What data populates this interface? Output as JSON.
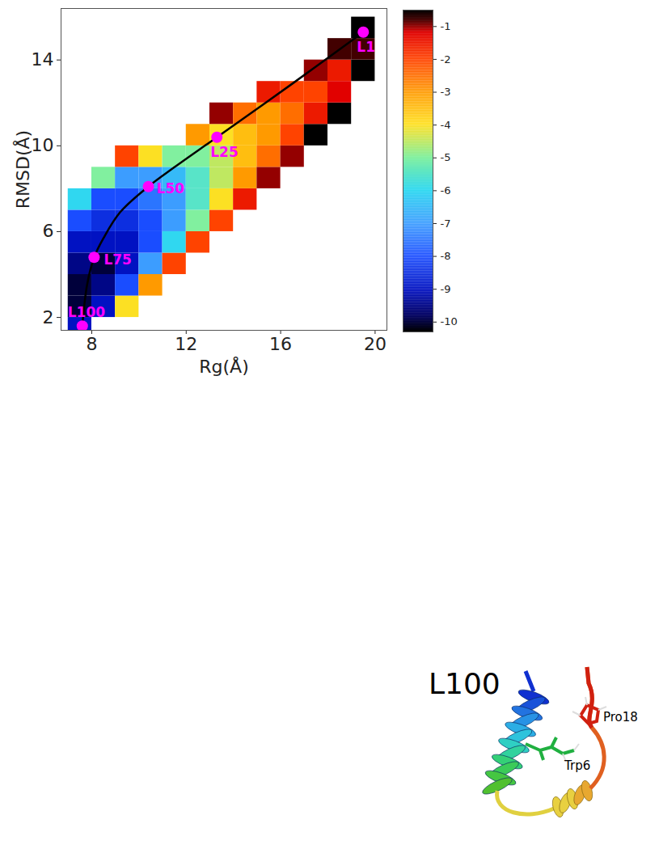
{
  "chart_data": {
    "type": "heatmap",
    "x_label": "Rg(Å)",
    "y_label": "RMSD(Å)",
    "xlim": [
      6.7,
      20.5
    ],
    "ylim": [
      1.4,
      16.4
    ],
    "xticks": [
      8,
      12,
      16,
      20
    ],
    "yticks": [
      2,
      6,
      10,
      14
    ],
    "heatmap": {
      "x_bins": [
        7,
        8,
        9,
        10,
        11,
        12,
        13,
        14,
        15,
        16,
        17,
        18,
        19,
        20
      ],
      "y_bins": [
        1,
        2,
        3,
        4,
        5,
        6,
        7,
        8,
        9,
        10,
        11,
        12,
        13,
        14,
        15,
        16
      ],
      "z": [
        [
          -9,
          null,
          null,
          null,
          null,
          null,
          null,
          null,
          null,
          null,
          null,
          null,
          null
        ],
        [
          -10,
          -9,
          -4,
          null,
          null,
          null,
          null,
          null,
          null,
          null,
          null,
          null,
          null
        ],
        [
          -10,
          -9.5,
          -8,
          -3,
          null,
          null,
          null,
          null,
          null,
          null,
          null,
          null,
          null
        ],
        [
          -9.5,
          -10,
          -9,
          -7,
          -2,
          null,
          null,
          null,
          null,
          null,
          null,
          null,
          null
        ],
        [
          -9,
          -9,
          -9,
          -8,
          -6,
          -2,
          null,
          null,
          null,
          null,
          null,
          null,
          null
        ],
        [
          -8,
          -8.5,
          -8.5,
          -8,
          -7,
          -5,
          -2,
          null,
          null,
          null,
          null,
          null,
          null
        ],
        [
          -6,
          -8,
          -8,
          -7.5,
          -7,
          -5.5,
          -4,
          -1.5,
          null,
          null,
          null,
          null,
          null
        ],
        [
          null,
          -5,
          -7,
          -7,
          -6.5,
          -5.5,
          -4.5,
          -3,
          -1,
          null,
          null,
          null,
          null
        ],
        [
          null,
          null,
          -2,
          -4,
          -5,
          -5,
          -4.5,
          -3.5,
          -2.5,
          -1,
          null,
          null,
          null
        ],
        [
          null,
          null,
          null,
          null,
          null,
          -3,
          -4,
          -3.5,
          -3,
          -2,
          -0.5,
          null,
          null
        ],
        [
          null,
          null,
          null,
          null,
          null,
          null,
          -1,
          -2.5,
          -3,
          -2.5,
          -1.5,
          -0.5,
          null
        ],
        [
          null,
          null,
          null,
          null,
          null,
          null,
          null,
          null,
          -1.5,
          -2,
          -2,
          -1.2,
          null
        ],
        [
          null,
          null,
          null,
          null,
          null,
          null,
          null,
          null,
          null,
          null,
          -1,
          -1.5,
          -0.3
        ],
        [
          null,
          null,
          null,
          null,
          null,
          null,
          null,
          null,
          null,
          null,
          null,
          -0.8,
          -0.8
        ],
        [
          null,
          null,
          null,
          null,
          null,
          null,
          null,
          null,
          null,
          null,
          null,
          null,
          -0.5
        ]
      ]
    },
    "colorbar": {
      "lim": [
        -10.3,
        -0.5
      ],
      "ticks": [
        -1,
        -2,
        -3,
        -4,
        -5,
        -6,
        -7,
        -8,
        -9,
        -10
      ]
    },
    "path": {
      "x": [
        19.5,
        16.5,
        13.3,
        11.5,
        10.4,
        9.2,
        8.5,
        8.1,
        7.8,
        7.6
      ],
      "y": [
        15.3,
        12.9,
        10.4,
        9.0,
        8.1,
        6.9,
        5.7,
        4.8,
        3.5,
        1.6
      ],
      "color": "#000000"
    },
    "points": [
      {
        "label": "L1",
        "x": 19.5,
        "y": 15.3
      },
      {
        "label": "L25",
        "x": 13.3,
        "y": 10.4
      },
      {
        "label": "L50",
        "x": 10.4,
        "y": 8.1
      },
      {
        "label": "L75",
        "x": 8.1,
        "y": 4.8
      },
      {
        "label": "L100",
        "x": 7.6,
        "y": 1.6
      }
    ],
    "point_color": "#ff00ff"
  },
  "structure_image": {
    "title": "L100",
    "labels": [
      "Trp6",
      "Pro18"
    ]
  }
}
